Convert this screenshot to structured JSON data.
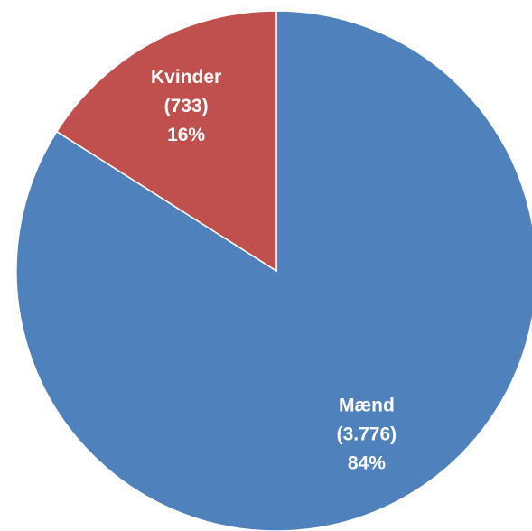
{
  "chart_data": {
    "type": "pie",
    "categories": [
      "Mænd",
      "Kvinder"
    ],
    "values": [
      84,
      16
    ],
    "value_labels": [
      "84%",
      "16%"
    ],
    "counts": [
      3776,
      733
    ],
    "count_labels": [
      "(3.776)",
      "(733)"
    ],
    "colors": [
      "#4f81bd",
      "#c0504d"
    ]
  }
}
